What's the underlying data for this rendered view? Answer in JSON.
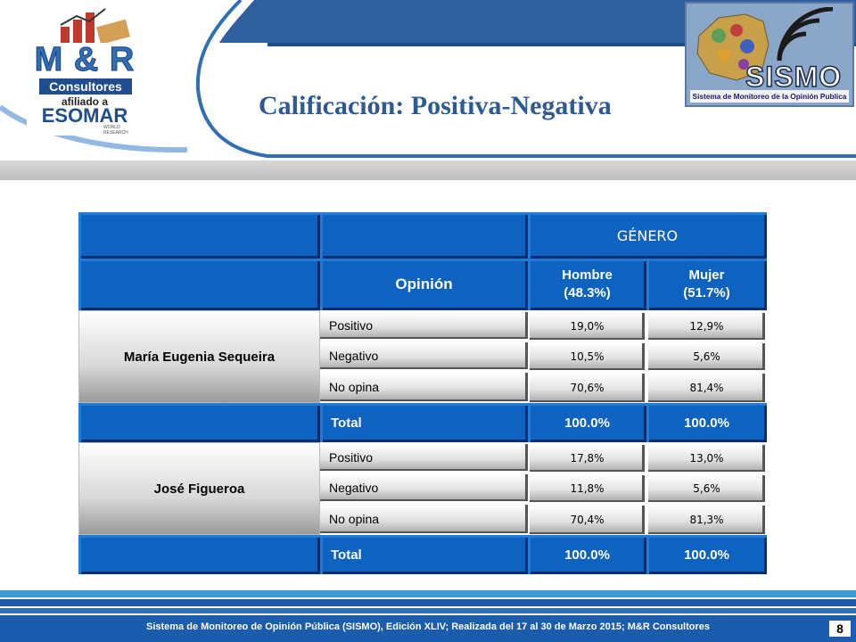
{
  "header": {
    "title": "Calificación: Positiva-Negativa",
    "mr_logo": {
      "name": "M & R",
      "consultores": "Consultores",
      "afiliado": "afiliado a",
      "esomar": "ESOMAR",
      "world_research": "WORLD RESEARCH"
    },
    "sismo_logo": {
      "name": "SISMO",
      "subtitle": "Sistema de Monitoreo de la Opinión Publica"
    }
  },
  "table": {
    "group_header": "GÉNERO",
    "opinion_label": "Opinión",
    "col_hombre": {
      "line1": "Hombre",
      "line2": "(48.3%)"
    },
    "col_mujer": {
      "line1": "Mujer",
      "line2": "(51.7%)"
    },
    "blocks": [
      {
        "name": "María Eugenia Sequeira",
        "rows": [
          {
            "label": "Positivo",
            "hombre": "19,0%",
            "mujer": "12,9%"
          },
          {
            "label": "Negativo",
            "hombre": "10,5%",
            "mujer": "5,6%"
          },
          {
            "label": "No opina",
            "hombre": "70,6%",
            "mujer": "81,4%"
          }
        ],
        "total": {
          "label": "Total",
          "hombre": "100.0%",
          "mujer": "100.0%"
        }
      },
      {
        "name": "José Figueroa",
        "rows": [
          {
            "label": "Positivo",
            "hombre": "17,8%",
            "mujer": "13,0%"
          },
          {
            "label": "Negativo",
            "hombre": "11,8%",
            "mujer": "5,6%"
          },
          {
            "label": "No opina",
            "hombre": "70,4%",
            "mujer": "81,3%"
          }
        ],
        "total": {
          "label": "Total",
          "hombre": "100.0%",
          "mujer": "100.0%"
        }
      }
    ]
  },
  "footer": {
    "text": "Sistema de Monitoreo de Opinión Pública (SISMO), Edición XLIV; Realizada del 17 al 30 de Marzo 2015; M&R Consultores",
    "page": "8"
  },
  "colors": {
    "title": "#2e5a94",
    "cell_blue": "#0e62c0",
    "header_blue": "#2f5f9e"
  }
}
